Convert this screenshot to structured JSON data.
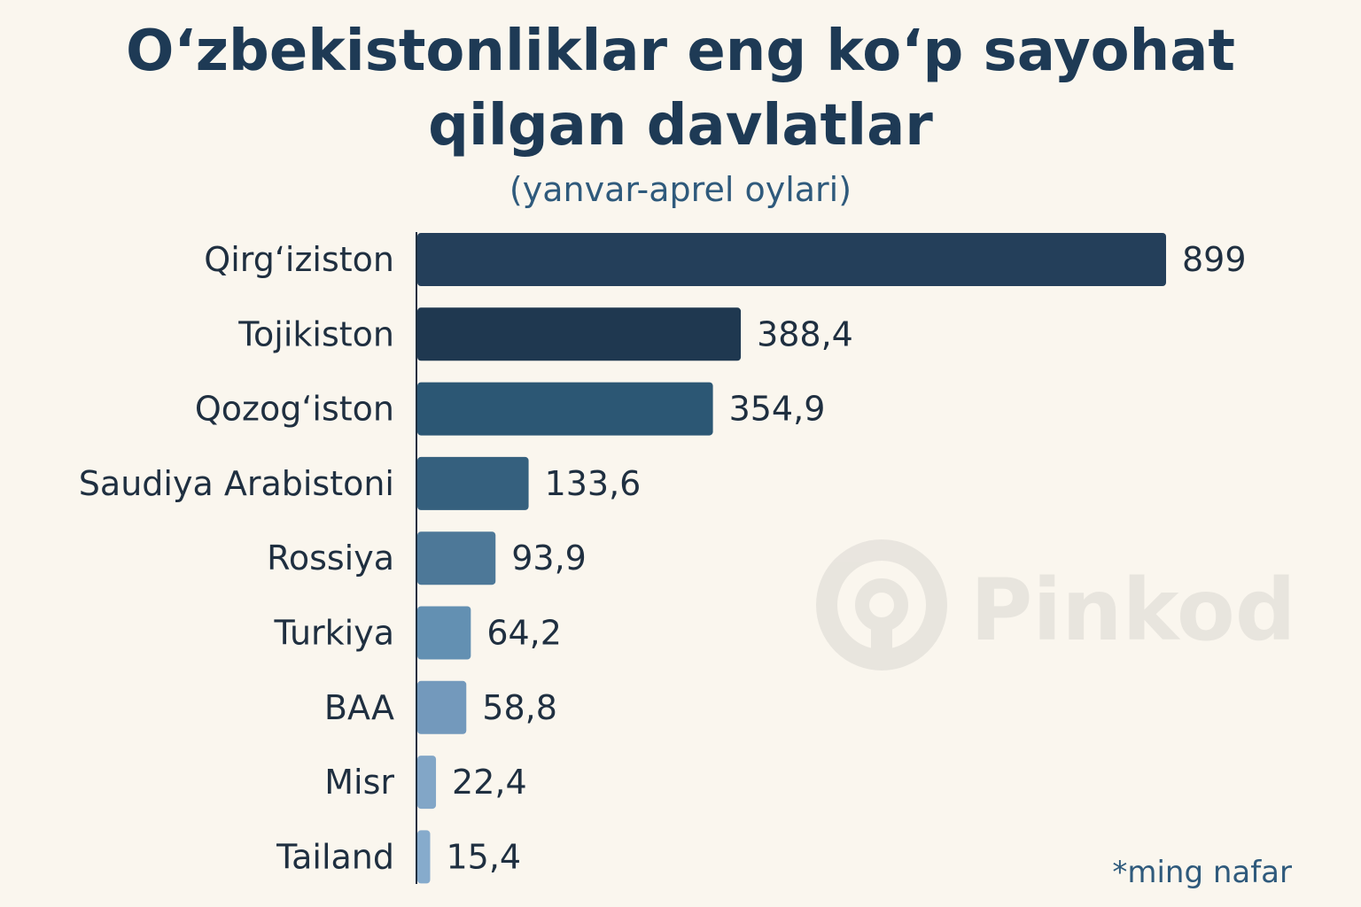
{
  "title_line_1": "O‘zbekistonliklar eng ko‘p sayohat",
  "title_line_2": "qilgan davlatlar",
  "subtitle": "(yanvar-aprel oylari)",
  "footnote": "*ming nafar",
  "watermark": {
    "text": "Pinkod",
    "icon": "pinkod-logo-icon"
  },
  "colors": {
    "background": "#faf6ee",
    "title": "#1e3a55",
    "bar_gradient": [
      "#243f5a",
      "#1f3850",
      "#2c5774",
      "#35607e",
      "#4d7898",
      "#6390b2",
      "#7399bc",
      "#82a6c7",
      "#86abcc"
    ]
  },
  "chart_data": {
    "type": "bar",
    "orientation": "horizontal",
    "title": "O‘zbekistonliklar eng ko‘p sayohat qilgan davlatlar",
    "subtitle": "(yanvar-aprel oylari)",
    "unit": "*ming nafar",
    "categories": [
      "Qirg‘iziston",
      "Tojikiston",
      "Qozog‘iston",
      "Saudiya Arabistoni",
      "Rossiya",
      "Turkiya",
      "BAA",
      "Misr",
      "Tailand"
    ],
    "values": [
      899,
      388.4,
      354.9,
      133.6,
      93.9,
      64.2,
      58.8,
      22.4,
      15.4
    ],
    "value_labels": [
      "899",
      "388,4",
      "354,9",
      "133,6",
      "93,9",
      "64,2",
      "58,8",
      "22,4",
      "15,4"
    ],
    "grid": false,
    "legend": "none"
  }
}
